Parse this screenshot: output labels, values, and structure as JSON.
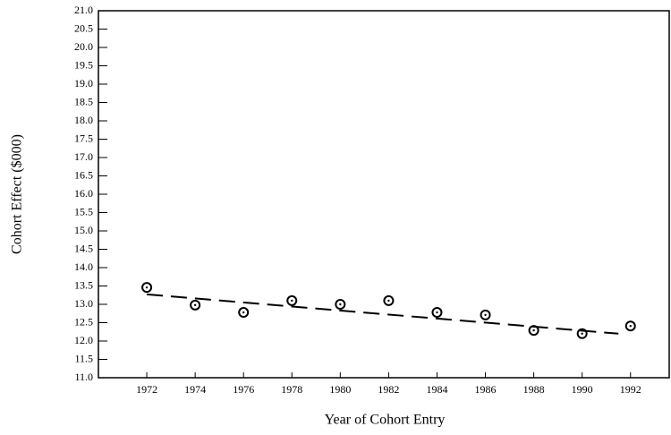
{
  "chart_data": {
    "type": "scatter",
    "xlabel": "Year of Cohort Entry",
    "ylabel": "Cohort Effect ($000)",
    "xlim": [
      1970,
      1993.6
    ],
    "ylim": [
      11,
      21
    ],
    "xticks": [
      1972,
      1974,
      1976,
      1978,
      1980,
      1982,
      1984,
      1986,
      1988,
      1990,
      1992
    ],
    "yticks": [
      {
        "value": 11,
        "label": "11.0"
      },
      11.5,
      {
        "value": 12,
        "label": "12.0"
      },
      12.5,
      {
        "value": 13,
        "label": "13.0"
      },
      13.5,
      {
        "value": 14,
        "label": "14.0"
      },
      14.5,
      {
        "value": 15,
        "label": "15.0"
      },
      15.5,
      {
        "value": 16,
        "label": "16.0"
      },
      16.5,
      {
        "value": 17,
        "label": "17.0"
      },
      17.5,
      {
        "value": 18,
        "label": "18.0"
      },
      18.5,
      {
        "value": 19,
        "label": "19.0"
      },
      19.5,
      {
        "value": 20,
        "label": "20.0"
      },
      20.5,
      {
        "value": 21,
        "label": "21.0"
      }
    ],
    "series": [
      {
        "style": "markers",
        "color": "#000000",
        "x": [
          1972,
          1974,
          1976,
          1978,
          1980,
          1982,
          1984,
          1986,
          1988,
          1990,
          1992
        ],
        "values": [
          13.46,
          12.98,
          12.78,
          13.1,
          13.0,
          13.1,
          12.78,
          12.71,
          12.29,
          12.2,
          12.41
        ]
      },
      {
        "style": "dashed-line",
        "color": "#000000",
        "x": [
          1972,
          1991.5
        ],
        "values": [
          13.27,
          12.2
        ]
      }
    ]
  }
}
